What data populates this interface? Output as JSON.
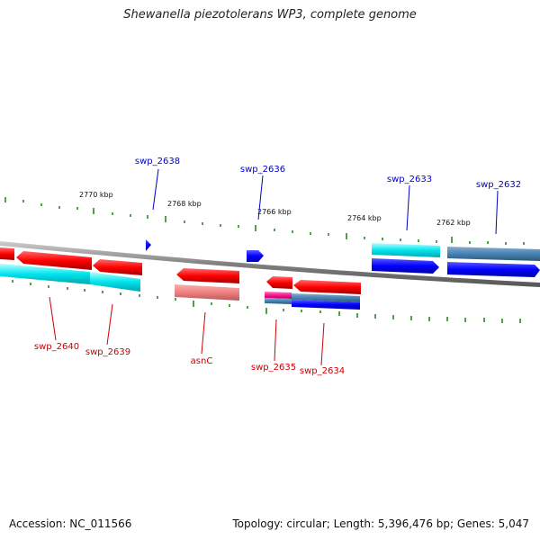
{
  "header": {
    "title": "Shewanella piezotolerans WP3, complete genome"
  },
  "footer": {
    "accession": "Accession: NC_011566",
    "summary": "Topology: circular; Length: 5,396,476 bp; Genes: 5,047"
  },
  "scale": {
    "labels": [
      "2770 kbp",
      "2768 kbp",
      "2766 kbp",
      "2764 kbp",
      "2762 kbp"
    ]
  },
  "genes": {
    "forward": [
      "swp_2638",
      "swp_2636",
      "swp_2633",
      "swp_2632"
    ],
    "reverse": [
      "swp_2640",
      "swp_2639",
      "asnC",
      "swp_2635",
      "swp_2634"
    ]
  },
  "colors": {
    "forward_label": "#0000cc",
    "reverse_label": "#cc0000",
    "cds": "#ff0000",
    "cds_light": "#f08080",
    "cds_blue": "#0000ff",
    "cds_steel": "#4682b4",
    "cyan": "#00e5ee",
    "magenta": "#ff1493",
    "tick": "#228b22",
    "backbone": "#808080"
  }
}
